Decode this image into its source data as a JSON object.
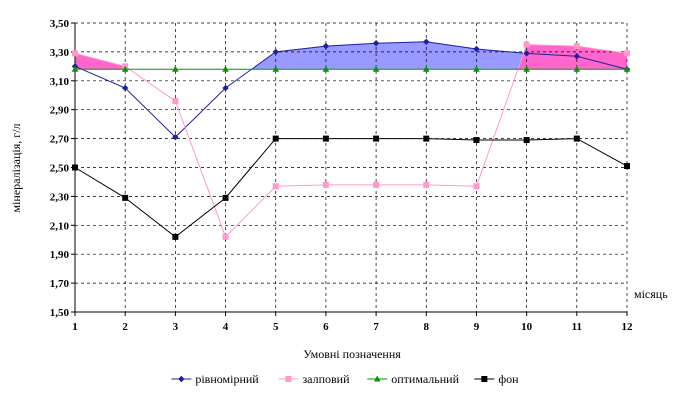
{
  "chart_data": {
    "type": "line",
    "title": "",
    "xlabel": "місяць",
    "ylabel": "мінералізація, г/л",
    "x": [
      1,
      2,
      3,
      4,
      5,
      6,
      7,
      8,
      9,
      10,
      11,
      12
    ],
    "x_tick_labels": [
      "1",
      "2",
      "3",
      "4",
      "5",
      "6",
      "7",
      "8",
      "9",
      "10",
      "11",
      "12"
    ],
    "ylim": [
      1.5,
      3.5
    ],
    "y_ticks": [
      1.5,
      1.7,
      1.9,
      2.1,
      2.3,
      2.5,
      2.7,
      2.9,
      3.1,
      3.3,
      3.5
    ],
    "y_tick_labels": [
      "1,50",
      "1,70",
      "1,90",
      "2,10",
      "2,30",
      "2,50",
      "2,70",
      "2,90",
      "3,10",
      "3,30",
      "3,50"
    ],
    "grid": "major-dashed",
    "legend_title": "Умовні позначення",
    "legend_placement": "bottom",
    "series": [
      {
        "name": "рівномірний",
        "color": "#1f1fa0",
        "marker": "diamond",
        "values": [
          3.2,
          3.05,
          2.71,
          3.05,
          3.3,
          3.34,
          3.36,
          3.37,
          3.32,
          3.29,
          3.27,
          3.18
        ]
      },
      {
        "name": "залповий",
        "color": "#ff99cc",
        "marker": "square",
        "values": [
          3.29,
          3.2,
          2.96,
          2.02,
          2.37,
          2.38,
          2.38,
          2.38,
          2.37,
          3.35,
          3.34,
          3.29
        ]
      },
      {
        "name": "оптимальний",
        "color": "#009900",
        "marker": "triangle",
        "values": [
          3.18,
          3.18,
          3.18,
          3.18,
          3.18,
          3.18,
          3.18,
          3.18,
          3.18,
          3.18,
          3.18,
          3.18
        ]
      },
      {
        "name": "фон",
        "color": "#000000",
        "marker": "square",
        "values": [
          2.5,
          2.29,
          2.02,
          2.29,
          2.7,
          2.7,
          2.7,
          2.7,
          2.69,
          2.69,
          2.7,
          2.51
        ]
      }
    ],
    "fills": [
      {
        "between": [
          "рівномірний",
          "оптимальний"
        ],
        "color": "#9999ff"
      },
      {
        "between": [
          "залповий",
          "оптимальний"
        ],
        "color": "#ff66cc"
      }
    ]
  }
}
